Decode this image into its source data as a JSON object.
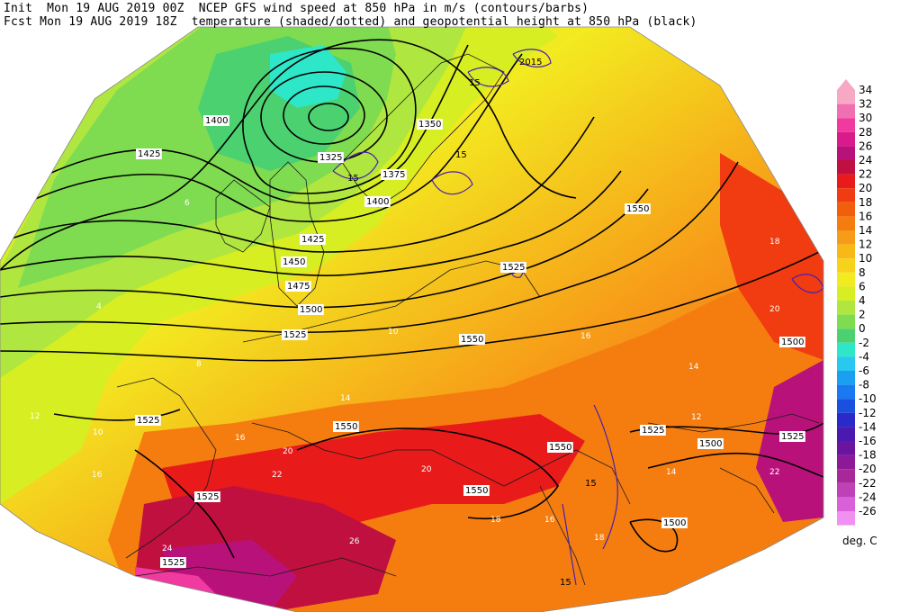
{
  "header": {
    "line1": "Init  Mon 19 AUG 2019 00Z  NCEP GFS wind speed at 850 hPa in m/s (contours/barbs)",
    "line2": "Fcst Mon 19 AUG 2019 18Z  temperature (shaded/dotted) and geopotential height at 850 hPa (black)"
  },
  "colorbar": {
    "units": "deg. C",
    "levels": [
      34,
      32,
      30,
      28,
      26,
      24,
      22,
      20,
      18,
      16,
      14,
      12,
      10,
      8,
      6,
      4,
      2,
      0,
      -2,
      -4,
      -6,
      -8,
      -10,
      -12,
      -14,
      -16,
      -18,
      -20,
      -22,
      -24,
      -26
    ],
    "colors": [
      "#f7a8c4",
      "#f06fb0",
      "#f03aa0",
      "#d81a8a",
      "#b8127a",
      "#c01040",
      "#e81a1a",
      "#f03c10",
      "#f25f0c",
      "#f57d10",
      "#f79c18",
      "#f8b818",
      "#f6d21a",
      "#f3ea20",
      "#d6ee22",
      "#b0e640",
      "#7fdc50",
      "#4cd170",
      "#2ee6c8",
      "#28c8f0",
      "#1aa0f0",
      "#1a78f0",
      "#1a50e0",
      "#2a2ac8",
      "#4a1ab0",
      "#6a14a0",
      "#8c1a98",
      "#a8289a",
      "#c040b8",
      "#d860d8",
      "#f090f0"
    ]
  },
  "height_labels": [
    {
      "text": "1400"
    },
    {
      "text": "1425"
    },
    {
      "text": "1325"
    },
    {
      "text": "1350"
    },
    {
      "text": "1375"
    },
    {
      "text": "1400"
    },
    {
      "text": "1425"
    },
    {
      "text": "1450"
    },
    {
      "text": "1475"
    },
    {
      "text": "1500"
    },
    {
      "text": "1525"
    },
    {
      "text": "1550"
    },
    {
      "text": "1525"
    },
    {
      "text": "1550"
    },
    {
      "text": "1525"
    },
    {
      "text": "1550"
    },
    {
      "text": "1550"
    },
    {
      "text": "1525"
    },
    {
      "text": "1525"
    },
    {
      "text": "1550"
    },
    {
      "text": "1525"
    },
    {
      "text": "1500"
    },
    {
      "text": "1500"
    },
    {
      "text": "1525"
    },
    {
      "text": "1500"
    },
    {
      "text": "1550"
    }
  ],
  "temp_labels": [
    {
      "text": "12"
    },
    {
      "text": "10"
    },
    {
      "text": "6"
    },
    {
      "text": "4"
    },
    {
      "text": "8"
    },
    {
      "text": "14"
    },
    {
      "text": "16"
    },
    {
      "text": "20"
    },
    {
      "text": "18"
    },
    {
      "text": "16"
    },
    {
      "text": "22"
    },
    {
      "text": "20"
    },
    {
      "text": "24"
    },
    {
      "text": "26"
    },
    {
      "text": "18"
    },
    {
      "text": "14"
    },
    {
      "text": "16"
    },
    {
      "text": "12"
    },
    {
      "text": "10"
    },
    {
      "text": "20"
    },
    {
      "text": "22"
    },
    {
      "text": "16"
    },
    {
      "text": "18"
    },
    {
      "text": "14"
    }
  ],
  "wind_labels": [
    {
      "text": "15"
    },
    {
      "text": "15"
    },
    {
      "text": "15"
    },
    {
      "text": "2015"
    },
    {
      "text": "15"
    },
    {
      "text": "15"
    }
  ]
}
